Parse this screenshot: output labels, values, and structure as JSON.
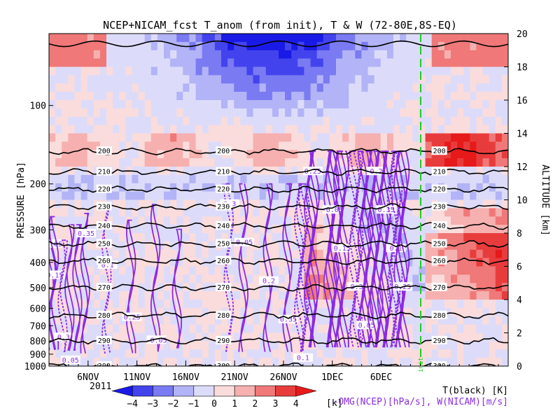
{
  "chart_data": {
    "type": "heatmap",
    "title": "NCEP+NICAM_fcst T_anom (from init), T & W  (72-80E,8S-EQ)",
    "ylabel_left": "PRESSURE [hPa]",
    "ylabel_right": "ALTITUDE [km]",
    "year_label": "2011",
    "pressure_ticks": [
      100,
      200,
      300,
      400,
      500,
      600,
      700,
      800,
      900,
      1000
    ],
    "pressure_tick_labels": [
      "100",
      "200",
      "300",
      "400",
      "500",
      "600",
      "700",
      "800",
      "900",
      "1000"
    ],
    "altitude_ticks": [
      0,
      2,
      4,
      6,
      8,
      10,
      12,
      14,
      16,
      18,
      20
    ],
    "x_tick_labels": [
      "6NOV",
      "11NOV",
      "16NOV",
      "21NOV",
      "26NOV",
      "1DEC",
      "6DEC"
    ],
    "init_label": "init",
    "colorbar": {
      "unit": "[k]",
      "levels": [
        -4,
        -3,
        -2,
        -1,
        0,
        1,
        2,
        3,
        4
      ],
      "colors": [
        "#1a1ae6",
        "#4343ee",
        "#7a7af2",
        "#b3b3f7",
        "#dcdcfa",
        "#fadcdc",
        "#f6b0b0",
        "#f07878",
        "#e83c3c",
        "#e61a1a"
      ]
    },
    "legend": {
      "t_label": "T(black) [K]",
      "w_label": "-OMG(NCEP)[hPa/s], W(NICAM)[m/s]"
    },
    "temperature_isotherms": [
      {
        "value": 200,
        "label": "200"
      },
      {
        "value": 210,
        "label": "210"
      },
      {
        "value": 220,
        "label": "220"
      },
      {
        "value": 230,
        "label": "230"
      },
      {
        "value": 240,
        "label": "240"
      },
      {
        "value": 250,
        "label": "250"
      },
      {
        "value": 260,
        "label": "260"
      },
      {
        "value": 270,
        "label": "270"
      },
      {
        "value": 280,
        "label": "280"
      },
      {
        "value": 290,
        "label": "290"
      },
      {
        "value": 300,
        "label": "300"
      }
    ],
    "w_contour_labels": [
      "-0.05",
      "0.05",
      "0.1",
      "0.15",
      "0.2",
      "0.25",
      "0.3",
      "0.35"
    ],
    "t_line_color": "#000000",
    "w_line_color": "#8a2be2",
    "init_line_color": "#22cc22"
  }
}
